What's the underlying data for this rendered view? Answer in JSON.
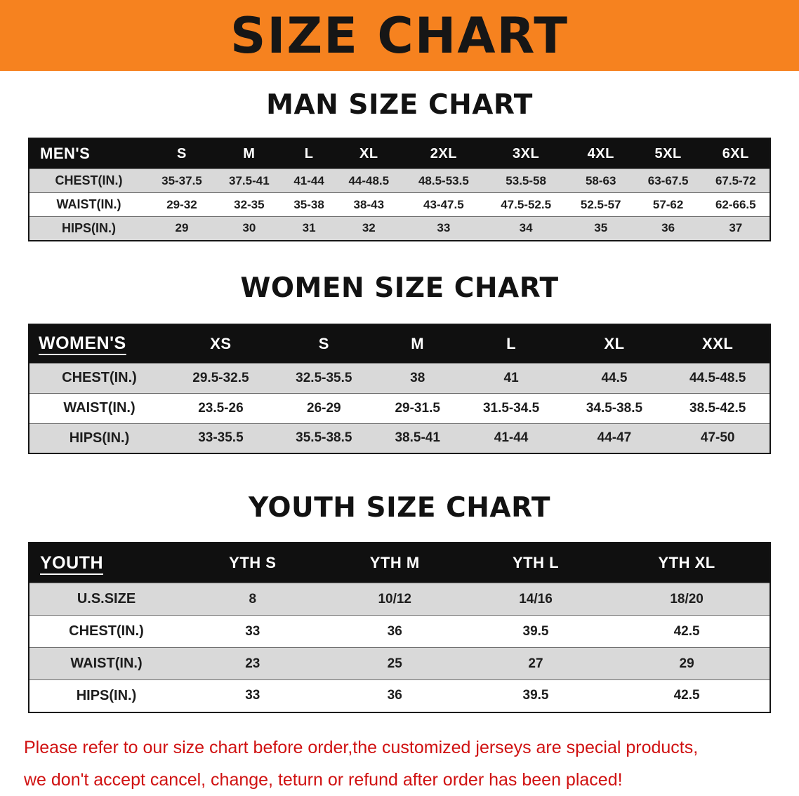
{
  "banner": {
    "title": "SIZE CHART"
  },
  "colors": {
    "banner-bg": "#F6821F",
    "header-bg": "#101010",
    "row-stripe": "#D9D9D9",
    "footer-red": "#D01111",
    "text-dark": "#1A1A1A"
  },
  "footer": {
    "line1": "Please refer to our size chart before order,the customized jerseys are special products,",
    "line2": "we don't accept cancel, change, teturn or refund after order has been placed!"
  },
  "chart_data": [
    {
      "type": "table",
      "title": "MAN SIZE CHART",
      "label": "MEN'S",
      "columns": [
        "S",
        "M",
        "L",
        "XL",
        "2XL",
        "3XL",
        "4XL",
        "5XL",
        "6XL"
      ],
      "rows": [
        {
          "label": "CHEST(IN.)",
          "values": [
            "35-37.5",
            "37.5-41",
            "41-44",
            "44-48.5",
            "48.5-53.5",
            "53.5-58",
            "58-63",
            "63-67.5",
            "67.5-72"
          ]
        },
        {
          "label": "WAIST(IN.)",
          "values": [
            "29-32",
            "32-35",
            "35-38",
            "38-43",
            "43-47.5",
            "47.5-52.5",
            "52.5-57",
            "57-62",
            "62-66.5"
          ]
        },
        {
          "label": "HIPS(IN.)",
          "values": [
            "29",
            "30",
            "31",
            "32",
            "33",
            "34",
            "35",
            "36",
            "37"
          ]
        }
      ]
    },
    {
      "type": "table",
      "title": "WOMEN SIZE CHART",
      "label": "WOMEN'S",
      "columns": [
        "XS",
        "S",
        "M",
        "L",
        "XL",
        "XXL"
      ],
      "rows": [
        {
          "label": "CHEST(IN.)",
          "values": [
            "29.5-32.5",
            "32.5-35.5",
            "38",
            "41",
            "44.5",
            "44.5-48.5"
          ]
        },
        {
          "label": "WAIST(IN.)",
          "values": [
            "23.5-26",
            "26-29",
            "29-31.5",
            "31.5-34.5",
            "34.5-38.5",
            "38.5-42.5"
          ]
        },
        {
          "label": "HIPS(IN.)",
          "values": [
            "33-35.5",
            "35.5-38.5",
            "38.5-41",
            "41-44",
            "44-47",
            "47-50"
          ]
        }
      ]
    },
    {
      "type": "table",
      "title": "YOUTH SIZE CHART",
      "label": "YOUTH",
      "columns": [
        "YTH S",
        "YTH M",
        "YTH L",
        "YTH XL"
      ],
      "rows": [
        {
          "label": "U.S.SIZE",
          "values": [
            "8",
            "10/12",
            "14/16",
            "18/20"
          ]
        },
        {
          "label": "CHEST(IN.)",
          "values": [
            "33",
            "36",
            "39.5",
            "42.5"
          ]
        },
        {
          "label": "WAIST(IN.)",
          "values": [
            "23",
            "25",
            "27",
            "29"
          ]
        },
        {
          "label": "HIPS(IN.)",
          "values": [
            "33",
            "36",
            "39.5",
            "42.5"
          ]
        }
      ]
    }
  ]
}
